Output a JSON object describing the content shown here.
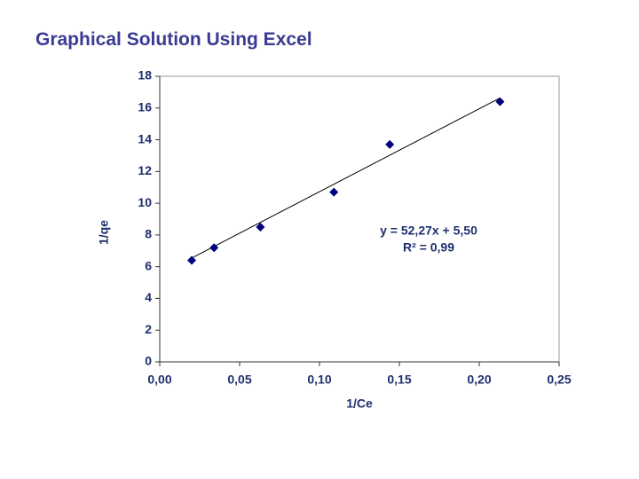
{
  "chart_data": {
    "type": "scatter",
    "title": "Graphical Solution Using Excel",
    "x_label": "1/Ce",
    "y_label": "1/qe",
    "series": [
      {
        "color": "#000080",
        "x": [
          0.02,
          0.034,
          0.063,
          0.109,
          0.144,
          0.213
        ],
        "values": [
          6.4,
          7.2,
          8.5,
          10.7,
          13.7,
          16.4
        ]
      }
    ],
    "trendline": {
      "slope": 52.27,
      "intercept": 5.5,
      "color": "#000000",
      "equation": "y = 52,27x + 5,50",
      "r2": "R² = 0,99"
    },
    "xlim": [
      0,
      0.25
    ],
    "xticks": [
      {
        "value": 0,
        "label": "0,00"
      },
      {
        "value": 0.05,
        "label": "0,05"
      },
      {
        "value": 0.1,
        "label": "0,10"
      },
      {
        "value": 0.15,
        "label": "0,15"
      },
      {
        "value": 0.2,
        "label": "0,20"
      },
      {
        "value": 0.25,
        "label": "0,25"
      }
    ],
    "ylim": [
      0,
      18
    ],
    "yticks": [
      0,
      2,
      4,
      6,
      8,
      10,
      12,
      14,
      16,
      18
    ],
    "grid": false
  }
}
